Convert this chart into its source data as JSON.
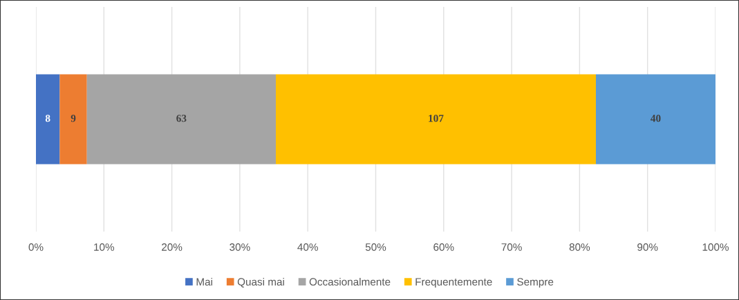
{
  "chart_data": {
    "type": "bar",
    "orientation": "horizontal",
    "stacked": true,
    "categories": [
      null
    ],
    "series": [
      {
        "name": "Mai",
        "color": "#4472c4",
        "values": [
          3.5
        ]
      },
      {
        "name": "Quasi mai",
        "color": "#ed7d31",
        "values": [
          4.0
        ]
      },
      {
        "name": "Occasionalmente",
        "color": "#a5a5a5",
        "values": [
          27.8
        ]
      },
      {
        "name": "Frequentemente",
        "color": "#ffc000",
        "values": [
          47.1
        ]
      },
      {
        "name": "Sempre",
        "color": "#5b9bd5",
        "values": [
          17.6
        ]
      }
    ],
    "annotations": [
      "8",
      "9",
      "63",
      "107",
      "40"
    ],
    "xlim": [
      0,
      100
    ],
    "xticks": [
      {
        "value": 0,
        "label": "0%"
      },
      {
        "value": 10,
        "label": "10%"
      },
      {
        "value": 20,
        "label": "20%"
      },
      {
        "value": 30,
        "label": "30%"
      },
      {
        "value": 40,
        "label": "40%"
      },
      {
        "value": 50,
        "label": "50%"
      },
      {
        "value": 60,
        "label": "60%"
      },
      {
        "value": 70,
        "label": "70%"
      },
      {
        "value": 80,
        "label": "80%"
      },
      {
        "value": 90,
        "label": "90%"
      },
      {
        "value": 100,
        "label": "100%"
      }
    ],
    "tick_labels": "x",
    "grid": "x",
    "legend": "bottom"
  }
}
